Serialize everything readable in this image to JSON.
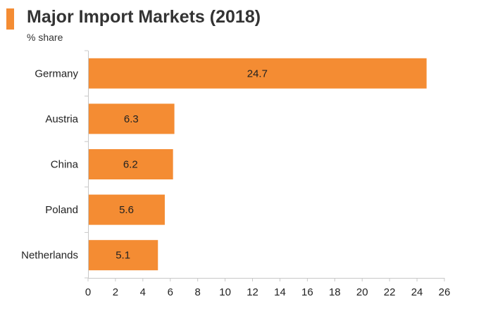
{
  "header": {
    "title": "Major Import Markets (2018)",
    "subtitle": "% share"
  },
  "colors": {
    "accent": "#F48C33",
    "bar": "#F48C33",
    "axis": "#C8C8C8"
  },
  "chart_data": {
    "type": "bar",
    "orientation": "horizontal",
    "title": "Major Import Markets (2018)",
    "subtitle": "% share",
    "categories": [
      "Germany",
      "Austria",
      "China",
      "Poland",
      "Netherlands"
    ],
    "values": [
      24.7,
      6.3,
      6.2,
      5.6,
      5.1
    ],
    "data_labels": [
      "24.7",
      "6.3",
      "6.2",
      "5.6",
      "5.1"
    ],
    "xlim": [
      0,
      26
    ],
    "xticks": [
      0,
      2,
      4,
      6,
      8,
      10,
      12,
      14,
      16,
      18,
      20,
      22,
      24,
      26
    ],
    "grid": false,
    "legend": "none"
  }
}
